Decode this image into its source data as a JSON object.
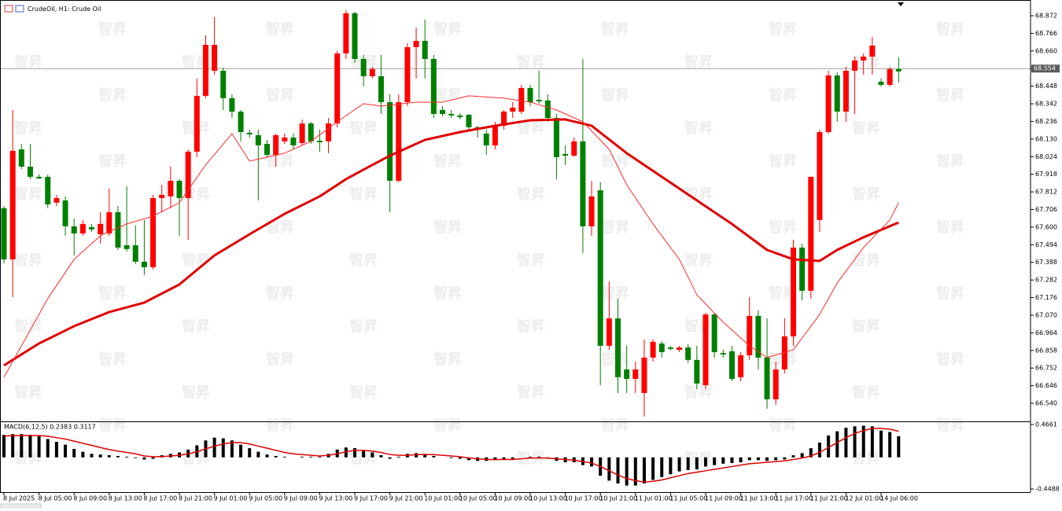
{
  "chart_data": {
    "type": "candlestick",
    "title": "CrudeOil, H1: Crude Oil",
    "watermark": "智昇",
    "up_color": "#ff0000",
    "down_color": "#008000",
    "categories": [
      "8 Jul 2025",
      null,
      null,
      null,
      "8 Jul 05:00",
      null,
      null,
      null,
      "8 Jul 09:00",
      null,
      null,
      null,
      "8 Jul 13:00",
      null,
      null,
      null,
      "8 Jul 17:00",
      null,
      null,
      null,
      "8 Jul 21:00",
      null,
      null,
      null,
      "9 Jul 01:00",
      null,
      null,
      null,
      "9 Jul 05:00",
      null,
      null,
      null,
      "9 Jul 09:00",
      null,
      null,
      null,
      "9 Jul 13:00",
      null,
      null,
      null,
      "9 Jul 17:00",
      null,
      null,
      null,
      "9 Jul 21:00",
      null,
      null,
      null,
      "10 Jul 01:00",
      null,
      null,
      null,
      "10 Jul 05:00",
      null,
      null,
      null,
      "10 Jul 09:00",
      null,
      null,
      null,
      "10 Jul 13:00",
      null,
      null,
      null,
      "10 Jul 17:00",
      null,
      null,
      null,
      "10 Jul 21:00",
      null,
      null,
      null,
      "11 Jul 01:00",
      null,
      null,
      null,
      "11 Jul 05:00",
      null,
      null,
      null,
      "11 Jul 09:00",
      null,
      null,
      null,
      "11 Jul 13:00",
      null,
      null,
      null,
      "11 Jul 17:00",
      null,
      null,
      null,
      "11 Jul 21:00",
      null,
      null,
      null,
      "12 Jul 01:00",
      null,
      null,
      null,
      "14 Jul 06:00",
      null,
      null
    ],
    "open": [
      67.714,
      67.406,
      68.068,
      67.964,
      67.903,
      67.903,
      67.747,
      67.761,
      67.605,
      67.562,
      67.6,
      67.557,
      67.562,
      67.69,
      67.491,
      67.491,
      67.392,
      67.359,
      67.775,
      67.785,
      67.879,
      67.775,
      68.054,
      68.39,
      68.541,
      68.541,
      68.376,
      68.295,
      68.168,
      68.153,
      68.101,
      68.035,
      68.116,
      68.139,
      68.106,
      68.224,
      68.12,
      68.116,
      68.224,
      68.645,
      68.887,
      68.612,
      68.508,
      68.508,
      68.352,
      67.879,
      68.352,
      68.683,
      68.721,
      68.612,
      68.305,
      68.281,
      68.272,
      68.276,
      68.201,
      68.163,
      68.092,
      68.21,
      68.295,
      68.295,
      68.437,
      68.366,
      68.362,
      68.257,
      68.04,
      68.03,
      68.116,
      67.605,
      67.822,
      66.886,
      67.051,
      66.744,
      66.687,
      66.602,
      66.815,
      66.9,
      66.876,
      66.862,
      66.876,
      66.801,
      66.649,
      67.075,
      66.843,
      66.853,
      66.697,
      66.829,
      67.066,
      66.815,
      66.564,
      66.744,
      66.943,
      67.477,
      67.217,
      67.643,
      68.172,
      68.513,
      68.295,
      68.541,
      68.603,
      68.626,
      68.475,
      68.456,
      68.551
    ],
    "high": [
      67.728,
      68.305,
      68.101,
      68.101,
      67.917,
      67.917,
      67.794,
      67.785,
      67.652,
      67.643,
      67.619,
      67.69,
      67.832,
      67.728,
      67.846,
      67.61,
      67.643,
      67.794,
      67.855,
      67.964,
      67.889,
      68.068,
      68.494,
      68.754,
      68.863,
      68.56,
      68.399,
      68.305,
      68.187,
      68.187,
      68.125,
      68.163,
      68.163,
      68.163,
      68.248,
      68.234,
      68.187,
      68.257,
      68.66,
      68.906,
      68.896,
      68.636,
      68.565,
      68.636,
      68.399,
      68.399,
      68.707,
      68.801,
      68.849,
      68.636,
      68.328,
      68.305,
      68.286,
      68.281,
      68.21,
      68.187,
      68.234,
      68.305,
      68.352,
      68.456,
      68.456,
      68.541,
      68.399,
      68.281,
      68.092,
      68.139,
      68.612,
      67.879,
      67.87,
      67.274,
      67.17,
      66.886,
      66.791,
      66.924,
      66.924,
      66.914,
      66.886,
      66.886,
      66.895,
      66.886,
      67.085,
      67.085,
      66.862,
      66.886,
      66.848,
      67.179,
      67.099,
      67.051,
      66.791,
      67.051,
      67.524,
      67.501,
      67.903,
      68.187,
      68.541,
      68.532,
      68.565,
      68.626,
      68.645,
      68.745,
      68.494,
      68.565,
      68.622
    ],
    "low": [
      67.382,
      67.179,
      67.95,
      67.889,
      67.889,
      67.714,
      67.728,
      67.548,
      67.43,
      67.548,
      67.572,
      67.501,
      67.548,
      67.463,
      67.453,
      67.378,
      67.312,
      67.345,
      67.69,
      67.714,
      67.548,
      67.524,
      68.021,
      68.376,
      68.518,
      68.305,
      68.257,
      68.116,
      68.139,
      67.761,
      68.021,
      67.964,
      68.101,
      68.068,
      68.092,
      68.101,
      68.054,
      68.045,
      68.201,
      68.612,
      68.589,
      68.447,
      68.494,
      68.281,
      67.69,
      67.87,
      68.328,
      68.494,
      68.494,
      68.257,
      68.267,
      68.257,
      68.248,
      68.187,
      68.139,
      68.035,
      68.068,
      68.187,
      68.257,
      68.281,
      68.328,
      68.343,
      68.234,
      67.889,
      67.974,
      68.021,
      67.444,
      67.548,
      66.649,
      66.862,
      66.602,
      66.602,
      66.602,
      66.46,
      66.791,
      66.815,
      66.857,
      66.848,
      66.782,
      66.626,
      66.626,
      66.815,
      66.815,
      66.673,
      66.673,
      66.801,
      66.744,
      66.507,
      66.531,
      66.72,
      66.886,
      67.16,
      67.17,
      67.572,
      68.163,
      68.234,
      68.234,
      68.281,
      68.518,
      68.518,
      68.447,
      68.447,
      68.47
    ],
    "close": [
      67.406,
      68.059,
      67.964,
      67.903,
      67.893,
      67.737,
      67.775,
      67.605,
      67.562,
      67.619,
      67.586,
      67.619,
      67.69,
      67.477,
      67.468,
      67.392,
      67.359,
      67.775,
      67.794,
      67.879,
      67.775,
      68.054,
      68.39,
      68.697,
      68.697,
      68.376,
      68.295,
      68.172,
      68.158,
      68.092,
      68.035,
      68.153,
      68.139,
      68.092,
      68.224,
      68.116,
      68.111,
      68.224,
      68.645,
      68.887,
      68.612,
      68.508,
      68.551,
      68.352,
      67.879,
      68.352,
      68.683,
      68.721,
      68.612,
      68.281,
      68.281,
      68.272,
      68.262,
      68.201,
      68.191,
      68.092,
      68.21,
      68.295,
      68.319,
      68.437,
      68.352,
      68.357,
      68.257,
      68.021,
      68.03,
      68.116,
      67.605,
      67.785,
      66.886,
      67.051,
      66.697,
      66.687,
      66.744,
      66.815,
      66.91,
      66.848,
      66.867,
      66.876,
      66.801,
      66.659,
      67.075,
      66.848,
      66.834,
      66.687,
      66.829,
      67.066,
      66.815,
      66.564,
      66.744,
      66.943,
      67.477,
      67.217,
      67.903,
      68.172,
      68.513,
      68.295,
      68.541,
      68.603,
      68.626,
      68.693,
      68.456,
      68.551,
      68.537
    ],
    "ylim": [
      66.436,
      68.943
    ],
    "yticks": [
      68.872,
      68.766,
      {
        "value": 68.66,
        "label": "68.660"
      },
      68.554,
      68.448,
      68.342,
      68.236,
      {
        "value": 68.13,
        "label": "68.130"
      },
      68.024,
      67.918,
      67.812,
      67.706,
      {
        "value": 67.6,
        "label": "67.600"
      },
      67.494,
      67.388,
      67.282,
      67.176,
      {
        "value": 67.07,
        "label": "67.070"
      },
      66.964,
      66.858,
      66.752,
      66.646,
      {
        "value": 66.54,
        "label": "66.540"
      }
    ],
    "last_price": 68.554,
    "overlays": [
      {
        "color": "#e00000",
        "width": 3,
        "x": [
          0,
          4,
          8,
          12,
          16,
          20,
          24,
          28,
          32,
          36,
          39,
          42,
          44,
          48,
          52,
          56,
          60,
          64,
          67,
          71,
          75,
          79,
          83,
          87,
          90,
          93,
          95,
          98,
          102
        ],
        "values": [
          66.768,
          66.9,
          67.004,
          67.089,
          67.146,
          67.255,
          67.43,
          67.557,
          67.68,
          67.785,
          67.889,
          67.974,
          68.03,
          68.125,
          68.172,
          68.21,
          68.243,
          68.248,
          68.21,
          68.045,
          67.903,
          67.761,
          67.619,
          67.463,
          67.406,
          67.397,
          67.463,
          67.539,
          67.628
        ]
      },
      {
        "color": "#ff2a2a",
        "width": 1,
        "x": [
          0,
          2,
          5,
          8,
          11,
          14,
          17,
          20,
          23,
          26,
          28,
          32,
          35,
          38,
          41,
          43,
          47,
          50,
          53,
          57,
          60,
          63,
          66,
          69,
          71,
          74,
          77,
          79,
          82,
          85,
          87,
          90,
          93,
          95,
          98,
          101,
          102
        ],
        "values": [
          66.697,
          66.886,
          67.17,
          67.406,
          67.548,
          67.619,
          67.666,
          67.747,
          67.974,
          68.163,
          67.997,
          68.045,
          68.116,
          68.234,
          68.343,
          68.328,
          68.352,
          68.352,
          68.39,
          68.376,
          68.352,
          68.305,
          68.234,
          68.068,
          67.855,
          67.619,
          67.406,
          67.193,
          67.028,
          66.886,
          66.815,
          66.862,
          67.075,
          67.264,
          67.477,
          67.643,
          67.747
        ]
      }
    ],
    "macd": {
      "title": "MACD(6,12,5) 0.2383 0.3117",
      "bar_color": "#000000",
      "values": [
        0.32,
        0.33,
        0.33,
        0.32,
        0.3,
        0.26,
        0.22,
        0.18,
        0.12,
        0.08,
        0.05,
        0.04,
        0.03,
        0.02,
        0.01,
        -0.01,
        -0.03,
        -0.02,
        0.03,
        0.05,
        0.07,
        0.11,
        0.17,
        0.24,
        0.28,
        0.27,
        0.24,
        0.18,
        0.13,
        0.08,
        0.04,
        0.02,
        0.01,
        0.0,
        0.01,
        0.01,
        0.01,
        0.05,
        0.11,
        0.14,
        0.13,
        0.1,
        0.07,
        0.03,
        -0.02,
        0.01,
        0.05,
        0.06,
        0.05,
        0.02,
        0.0,
        -0.01,
        -0.02,
        -0.04,
        -0.05,
        -0.05,
        -0.04,
        -0.03,
        -0.02,
        0.0,
        0.01,
        0.01,
        -0.02,
        -0.05,
        -0.07,
        -0.07,
        -0.11,
        -0.13,
        -0.26,
        -0.33,
        -0.37,
        -0.4,
        -0.4,
        -0.37,
        -0.32,
        -0.28,
        -0.24,
        -0.2,
        -0.18,
        -0.17,
        -0.13,
        -0.11,
        -0.09,
        -0.08,
        -0.07,
        -0.04,
        -0.04,
        -0.05,
        -0.04,
        -0.03,
        0.03,
        0.06,
        0.13,
        0.21,
        0.31,
        0.37,
        0.42,
        0.44,
        0.45,
        0.44,
        0.38,
        0.36,
        0.3
      ],
      "signal": {
        "color": "#e00000",
        "values": [
          0.3,
          0.31,
          0.31,
          0.31,
          0.31,
          0.3,
          0.28,
          0.26,
          0.23,
          0.2,
          0.17,
          0.14,
          0.11,
          0.09,
          0.07,
          0.05,
          0.02,
          0.01,
          0.01,
          0.02,
          0.03,
          0.05,
          0.08,
          0.12,
          0.16,
          0.19,
          0.21,
          0.21,
          0.19,
          0.16,
          0.13,
          0.1,
          0.07,
          0.05,
          0.04,
          0.03,
          0.02,
          0.03,
          0.05,
          0.08,
          0.1,
          0.1,
          0.09,
          0.07,
          0.04,
          0.03,
          0.03,
          0.04,
          0.04,
          0.04,
          0.03,
          0.02,
          0.01,
          -0.01,
          -0.02,
          -0.03,
          -0.03,
          -0.03,
          -0.03,
          -0.02,
          -0.01,
          -0.01,
          -0.01,
          -0.02,
          -0.03,
          -0.04,
          -0.06,
          -0.08,
          -0.13,
          -0.19,
          -0.25,
          -0.3,
          -0.33,
          -0.35,
          -0.34,
          -0.32,
          -0.29,
          -0.26,
          -0.23,
          -0.21,
          -0.19,
          -0.17,
          -0.15,
          -0.13,
          -0.11,
          -0.09,
          -0.08,
          -0.07,
          -0.06,
          -0.05,
          -0.03,
          -0.01,
          0.02,
          0.07,
          0.14,
          0.21,
          0.28,
          0.34,
          0.38,
          0.41,
          0.41,
          0.4,
          0.37
        ]
      },
      "ylim": [
        -0.4934,
        0.4884
      ],
      "yticks": [
        0.4661,
        -0.4488
      ]
    }
  }
}
